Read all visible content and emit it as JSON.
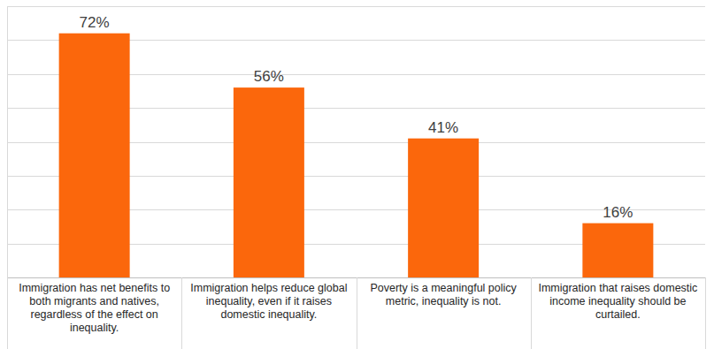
{
  "chart_data": {
    "type": "bar",
    "categories": [
      "Immigration has net benefits to both migrants and natives, regardless of the effect on inequality.",
      "Immigration helps reduce global inequality, even if it raises domestic inequality.",
      "Poverty is a meaningful policy metric, inequality is not.",
      "Immigration that raises domestic income inequality should be curtailed."
    ],
    "values": [
      72,
      56,
      41,
      16
    ],
    "value_labels": [
      "72%",
      "56%",
      "41%",
      "16%"
    ],
    "color": "#fb670c",
    "ylim": [
      0,
      80
    ],
    "yticks": [
      0,
      10,
      20,
      30,
      40,
      50,
      60,
      70,
      80
    ],
    "grid": true,
    "data_labels": true,
    "tick_labels": false
  }
}
